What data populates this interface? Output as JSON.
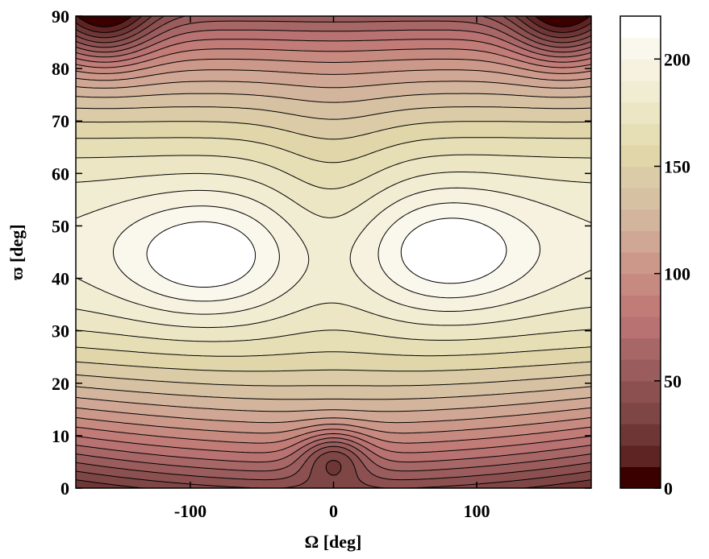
{
  "chart_data": {
    "type": "heatmap",
    "title": "",
    "xlabel": "Ω  [deg]",
    "ylabel": "ϖ [deg]",
    "xlim": [
      -180,
      180
    ],
    "ylim": [
      0,
      90
    ],
    "x_ticks": [
      -100,
      0,
      100
    ],
    "x_tick_labels": [
      "-100",
      "0",
      "100"
    ],
    "y_ticks": [
      0,
      10,
      20,
      30,
      40,
      50,
      60,
      70,
      80,
      90
    ],
    "y_tick_labels": [
      "0",
      "10",
      "20",
      "30",
      "40",
      "50",
      "60",
      "70",
      "80",
      "90"
    ],
    "colorbar": {
      "range": [
        0,
        220
      ],
      "ticks": [
        0,
        50,
        100,
        150,
        200
      ],
      "tick_labels": [
        "0",
        "50",
        "100",
        "150",
        "200"
      ],
      "levels": 22,
      "colors": [
        "#3a0000",
        "#5e2424",
        "#6f3636",
        "#7f4646",
        "#8c5050",
        "#9a5c5c",
        "#a86767",
        "#b87272",
        "#c17c77",
        "#c78a80",
        "#cc988a",
        "#d0a794",
        "#d3b49c",
        "#d6c1a3",
        "#dbcca7",
        "#e0d6aa",
        "#e6deb5",
        "#ece6c4",
        "#f1edd2",
        "#f6f2df",
        "#faf8ec",
        "#ffffff"
      ]
    },
    "features": {
      "maxima": [
        {
          "omega": -90,
          "varpi": 44,
          "value": 220
        },
        {
          "omega": 80,
          "varpi": 45,
          "value": 220
        }
      ],
      "saddle": {
        "omega": 0,
        "varpi": 55,
        "value": 190
      },
      "minimum": {
        "omega": 0,
        "varpi": 6,
        "value": 35
      },
      "low_corners": [
        {
          "omega": -160,
          "varpi": 90,
          "value": 10
        },
        {
          "omega": 160,
          "varpi": 90,
          "value": 10
        }
      ]
    },
    "grid": false,
    "legend": "none"
  }
}
